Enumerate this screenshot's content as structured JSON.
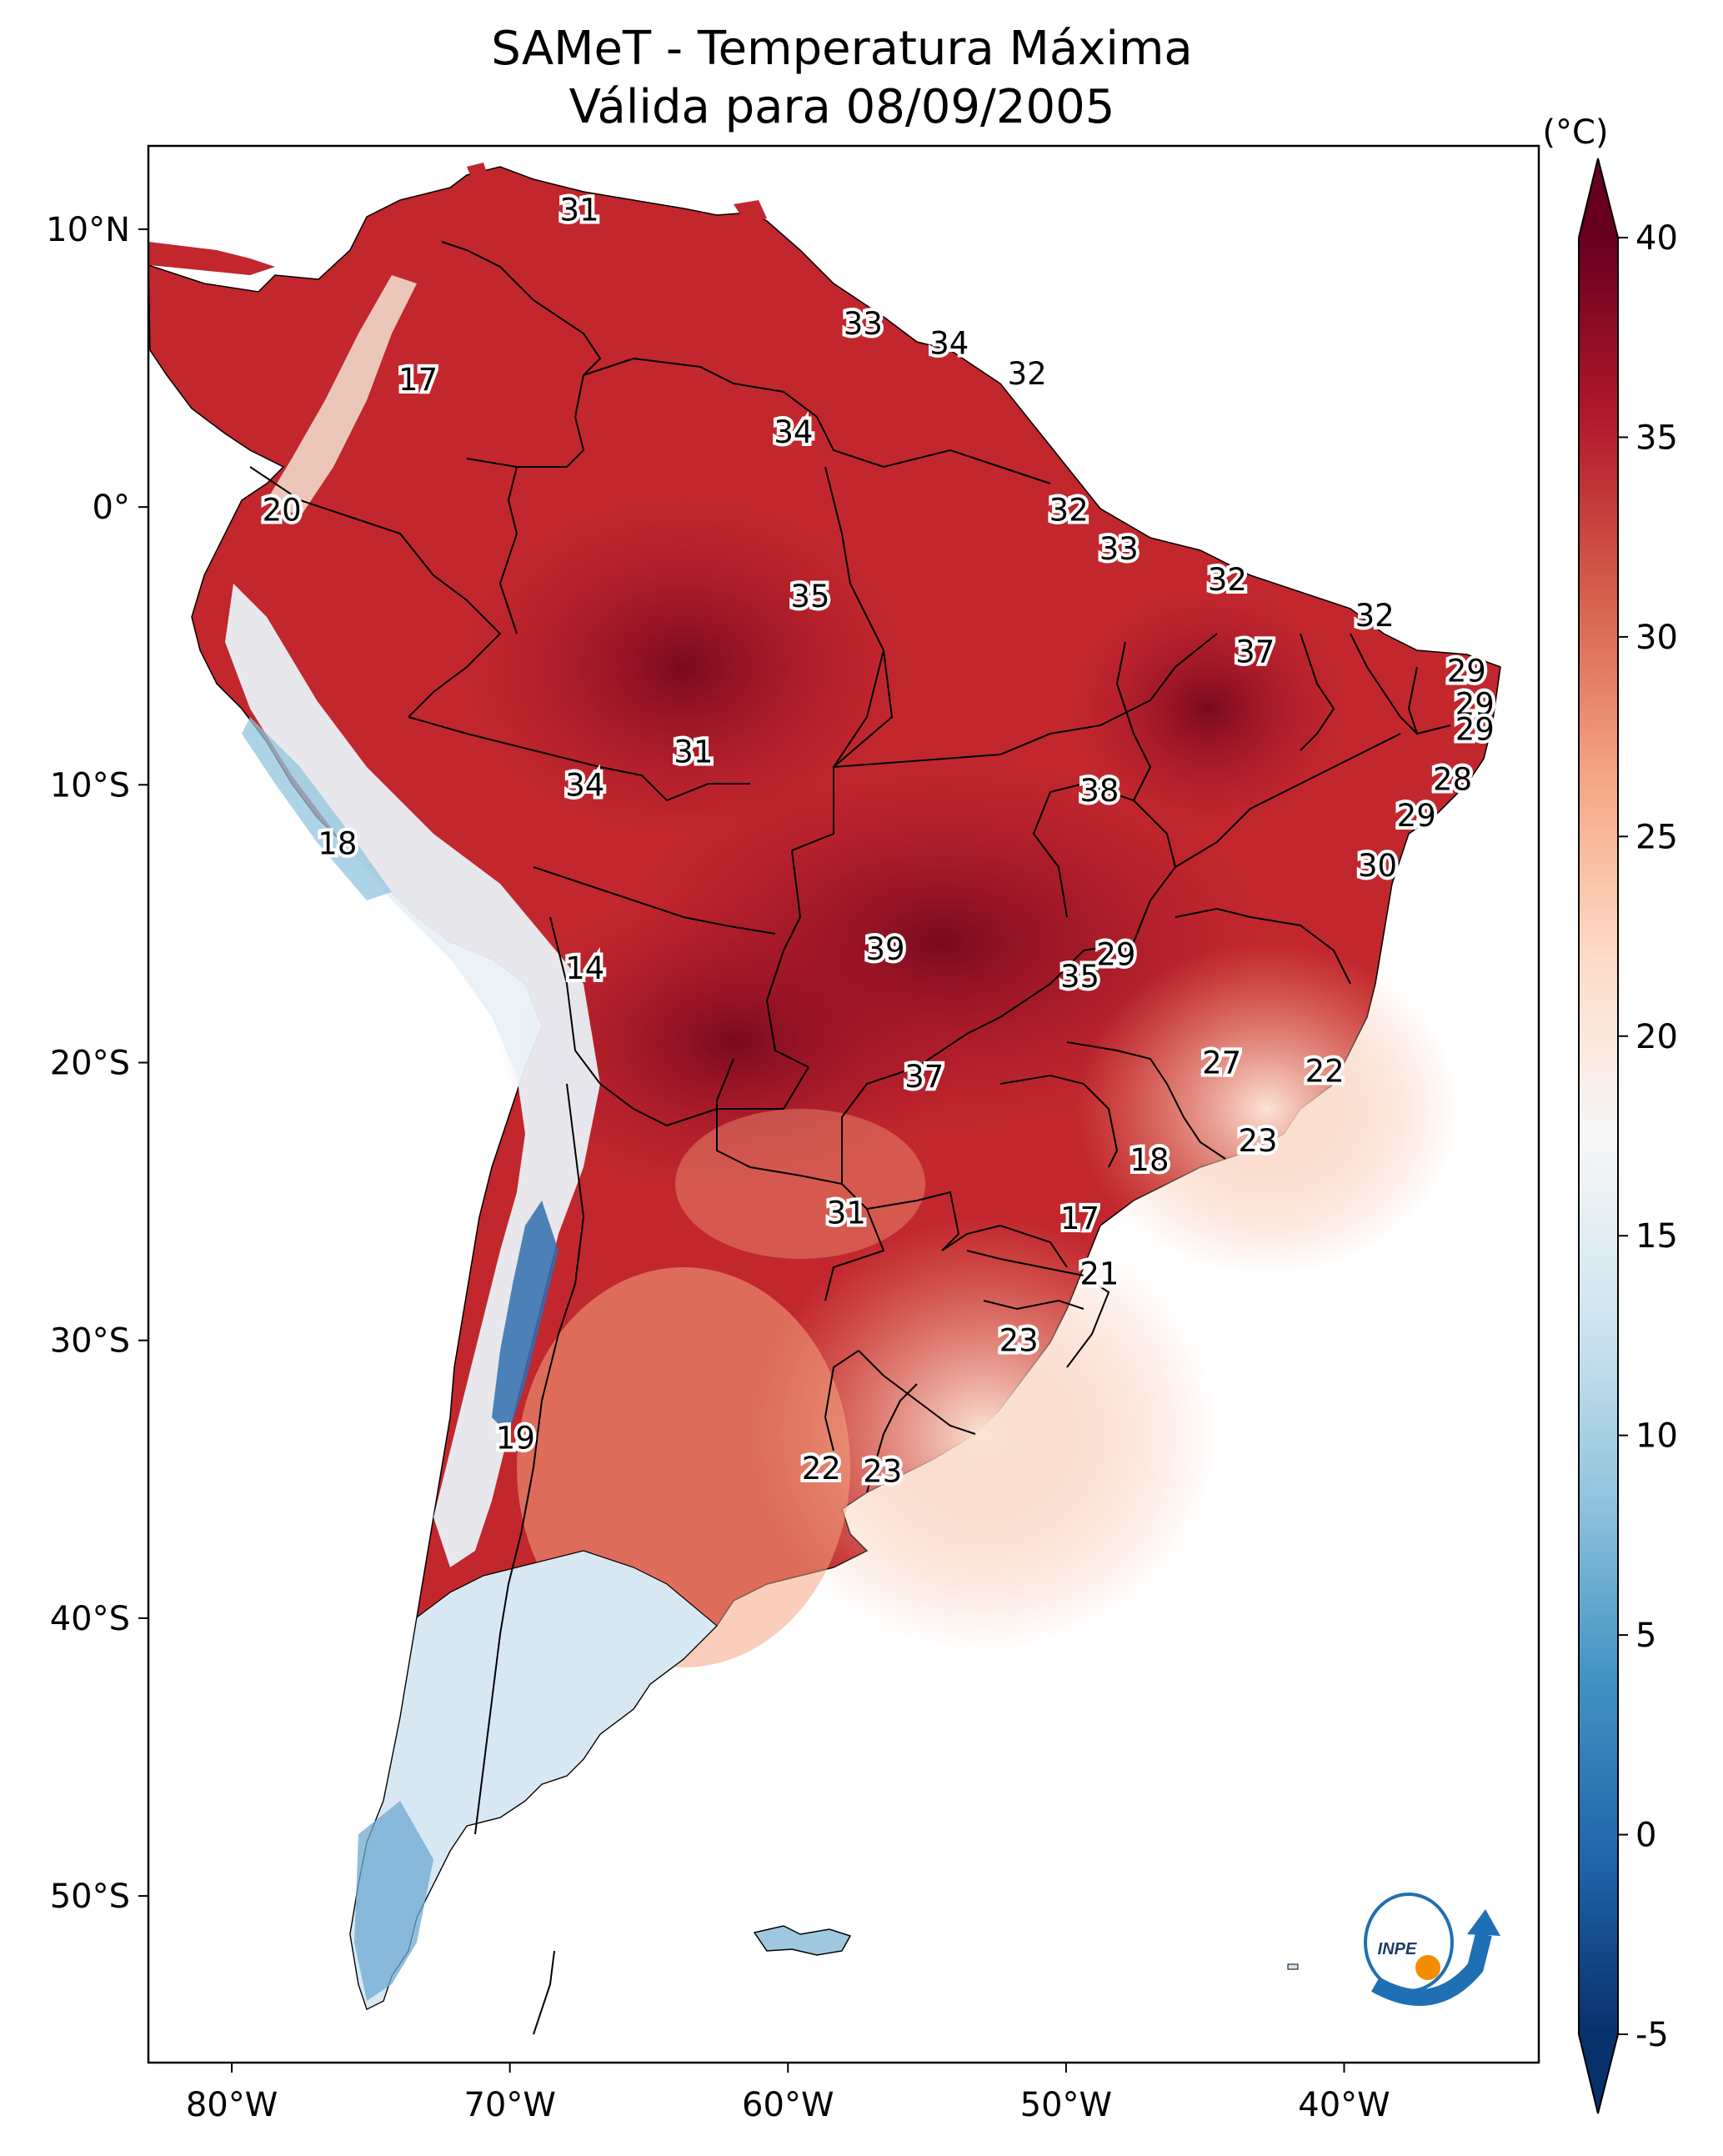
{
  "title": {
    "line1": "SAMeT - Temperatura Máxima",
    "line2": "Válida para 08/09/2005"
  },
  "axes": {
    "lon_labels": [
      "80°W",
      "70°W",
      "60°W",
      "50°W",
      "40°W"
    ],
    "lat_labels": [
      "10°N",
      "0°",
      "10°S",
      "20°S",
      "30°S",
      "40°S",
      "50°S"
    ],
    "lon_range": [
      -83,
      -33
    ],
    "lat_range": [
      -56,
      13
    ]
  },
  "colorbar": {
    "unit": "(°C)",
    "ticks": [
      "-5",
      "0",
      "5",
      "10",
      "15",
      "20",
      "25",
      "30",
      "35",
      "40"
    ],
    "range": [
      -5,
      40
    ],
    "extend": "both",
    "colors": [
      "#08306b",
      "#2166ac",
      "#4393c3",
      "#92c5de",
      "#d1e5f0",
      "#f7f7f7",
      "#fddbc7",
      "#f4a582",
      "#d6604d",
      "#b2182b",
      "#67001f"
    ]
  },
  "labels": [
    {
      "text": "31",
      "lon": -67.5,
      "lat": 10.7
    },
    {
      "text": "33",
      "lon": -57.3,
      "lat": 6.6
    },
    {
      "text": "34",
      "lon": -54.2,
      "lat": 5.9
    },
    {
      "text": "32",
      "lon": -51.4,
      "lat": 4.8
    },
    {
      "text": "17",
      "lon": -73.3,
      "lat": 4.6
    },
    {
      "text": "34",
      "lon": -59.8,
      "lat": 2.7
    },
    {
      "text": "20",
      "lon": -78.2,
      "lat": -0.1
    },
    {
      "text": "32",
      "lon": -49.9,
      "lat": -0.1
    },
    {
      "text": "33",
      "lon": -48.1,
      "lat": -1.5
    },
    {
      "text": "35",
      "lon": -59.2,
      "lat": -3.2
    },
    {
      "text": "32",
      "lon": -44.2,
      "lat": -2.6
    },
    {
      "text": "32",
      "lon": -38.9,
      "lat": -3.9
    },
    {
      "text": "37",
      "lon": -43.2,
      "lat": -5.2
    },
    {
      "text": "29",
      "lon": -35.6,
      "lat": -5.9
    },
    {
      "text": "29",
      "lon": -35.3,
      "lat": -7.1
    },
    {
      "text": "29",
      "lon": -35.3,
      "lat": -8.0
    },
    {
      "text": "31",
      "lon": -63.4,
      "lat": -8.8
    },
    {
      "text": "34",
      "lon": -67.3,
      "lat": -10.0
    },
    {
      "text": "38",
      "lon": -48.8,
      "lat": -10.2
    },
    {
      "text": "28",
      "lon": -36.1,
      "lat": -9.8
    },
    {
      "text": "29",
      "lon": -37.4,
      "lat": -11.1
    },
    {
      "text": "18",
      "lon": -76.2,
      "lat": -12.1
    },
    {
      "text": "30",
      "lon": -38.8,
      "lat": -12.9
    },
    {
      "text": "29",
      "lon": -48.2,
      "lat": -16.1
    },
    {
      "text": "39",
      "lon": -56.5,
      "lat": -15.9
    },
    {
      "text": "35",
      "lon": -49.5,
      "lat": -16.9
    },
    {
      "text": "14",
      "lon": -67.3,
      "lat": -16.6
    },
    {
      "text": "27",
      "lon": -44.4,
      "lat": -20.0
    },
    {
      "text": "22",
      "lon": -40.7,
      "lat": -20.3
    },
    {
      "text": "37",
      "lon": -55.1,
      "lat": -20.5
    },
    {
      "text": "23",
      "lon": -43.1,
      "lat": -22.8
    },
    {
      "text": "18",
      "lon": -47.0,
      "lat": -23.5
    },
    {
      "text": "31",
      "lon": -57.9,
      "lat": -25.4
    },
    {
      "text": "17",
      "lon": -49.5,
      "lat": -25.6
    },
    {
      "text": "21",
      "lon": -48.8,
      "lat": -27.6
    },
    {
      "text": "23",
      "lon": -51.7,
      "lat": -30.0
    },
    {
      "text": "19",
      "lon": -69.8,
      "lat": -33.5
    },
    {
      "text": "22",
      "lon": -58.8,
      "lat": -34.6
    },
    {
      "text": "23",
      "lon": -56.6,
      "lat": -34.7
    }
  ],
  "logo": {
    "text": "INPE"
  }
}
